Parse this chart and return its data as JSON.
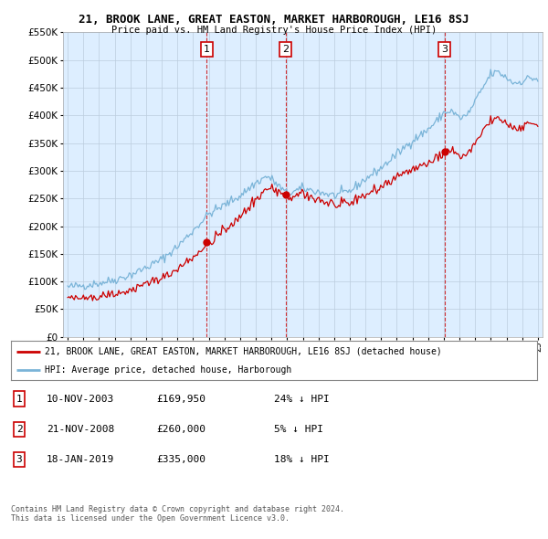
{
  "title": "21, BROOK LANE, GREAT EASTON, MARKET HARBOROUGH, LE16 8SJ",
  "subtitle": "Price paid vs. HM Land Registry's House Price Index (HPI)",
  "legend_house": "21, BROOK LANE, GREAT EASTON, MARKET HARBOROUGH, LE16 8SJ (detached house)",
  "legend_hpi": "HPI: Average price, detached house, Harborough",
  "footer_line1": "Contains HM Land Registry data © Crown copyright and database right 2024.",
  "footer_line2": "This data is licensed under the Open Government Licence v3.0.",
  "transactions": [
    {
      "num": 1,
      "date": "10-NOV-2003",
      "price": "£169,950",
      "diff": "24% ↓ HPI"
    },
    {
      "num": 2,
      "date": "21-NOV-2008",
      "price": "£260,000",
      "diff": "5% ↓ HPI"
    },
    {
      "num": 3,
      "date": "18-JAN-2019",
      "price": "£335,000",
      "diff": "18% ↓ HPI"
    }
  ],
  "sale_dates_year": [
    2003.87,
    2008.9,
    2019.05
  ],
  "sale_prices": [
    169950,
    260000,
    335000
  ],
  "hpi_color": "#7ab4d8",
  "house_color": "#cc0000",
  "transaction_line_color": "#cc0000",
  "chart_bg_color": "#ddeeff",
  "ylim": [
    0,
    550000
  ],
  "yticks": [
    0,
    50000,
    100000,
    150000,
    200000,
    250000,
    300000,
    350000,
    400000,
    450000,
    500000,
    550000
  ],
  "bg_color": "#ffffff",
  "grid_color": "#bbccdd"
}
